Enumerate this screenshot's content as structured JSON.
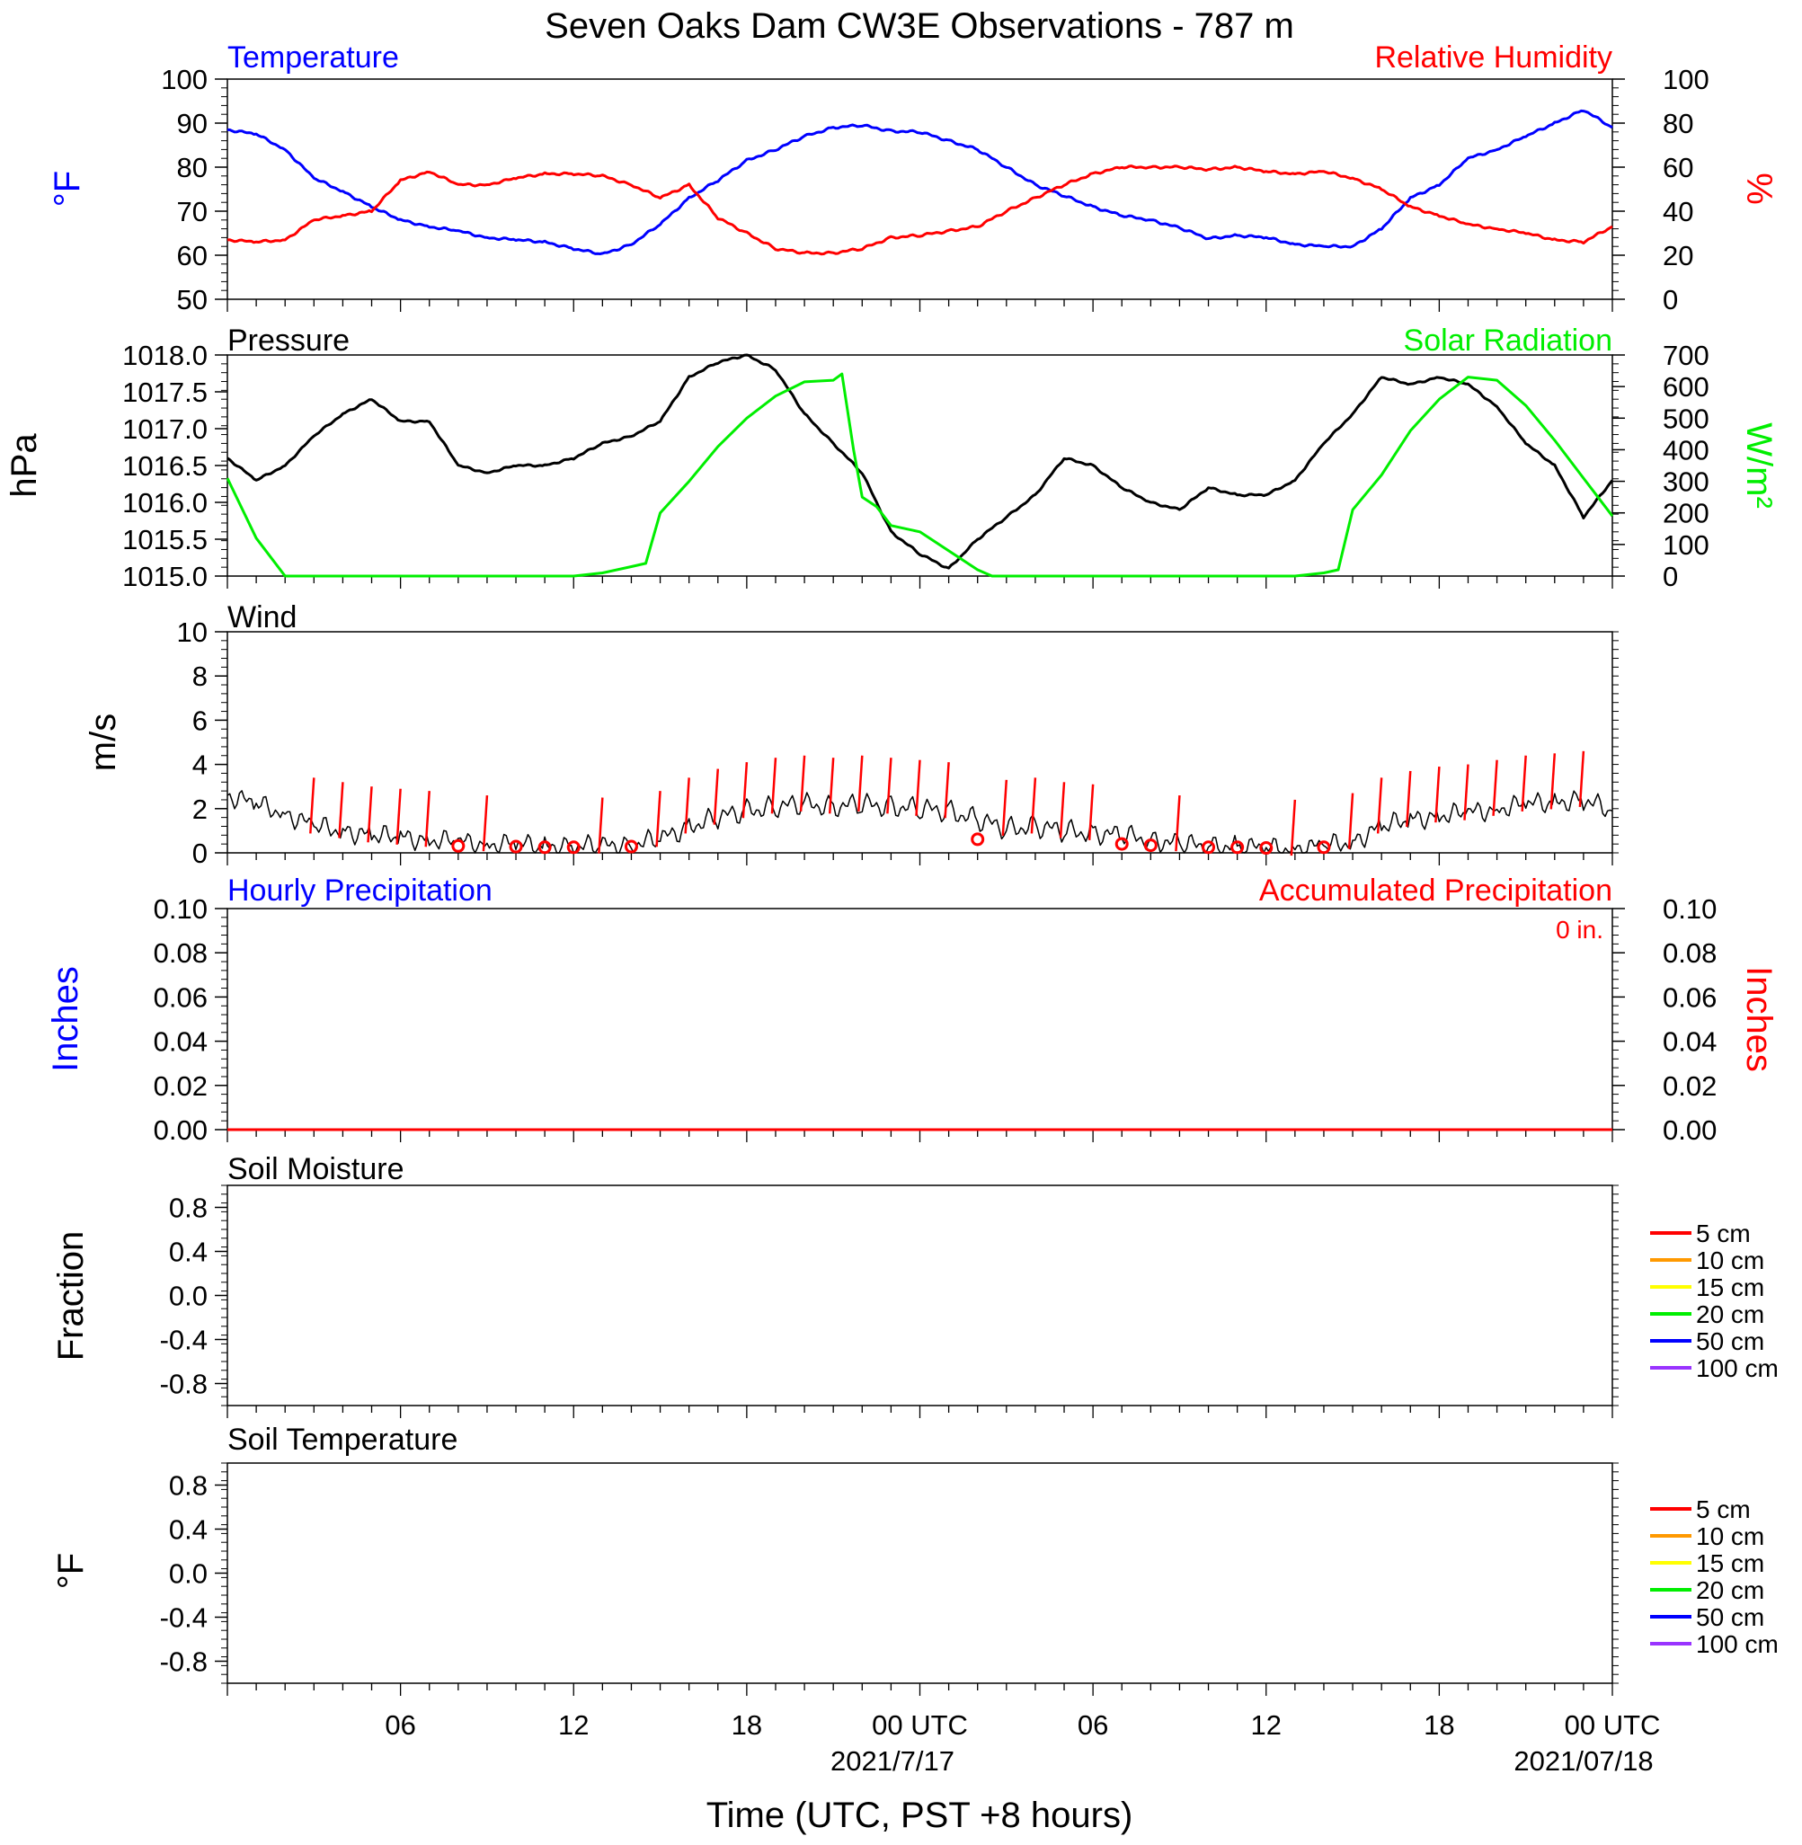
{
  "title": "Seven Oaks Dam CW3E Observations - 787 m",
  "time_axis": {
    "label": "Time (UTC, PST +8 hours)",
    "ticks": [
      "06",
      "12",
      "18",
      "00 UTC",
      "06",
      "12",
      "18",
      "00 UTC"
    ],
    "dates": [
      "2021/7/17",
      "2021/07/18"
    ],
    "range_hours": [
      0,
      48
    ]
  },
  "colors": {
    "blue": "#0000ff",
    "red": "#ff0000",
    "green": "#00ee00",
    "black": "#000000",
    "orange": "#ff9900",
    "yellow": "#ffff00",
    "violet": "#9933ff"
  },
  "panels": {
    "temperature": {
      "left_title": "Temperature",
      "right_title": "Relative Humidity",
      "left_unit": "°F",
      "right_unit": "%",
      "left_ticks": [
        "50",
        "60",
        "70",
        "80",
        "90",
        "100"
      ],
      "right_ticks": [
        "0",
        "20",
        "40",
        "60",
        "80",
        "100"
      ]
    },
    "pressure": {
      "left_title": "Pressure",
      "right_title": "Solar Radiation",
      "left_unit": "hPa",
      "right_unit": "W/m²",
      "left_ticks": [
        "1015.0",
        "1015.5",
        "1016.0",
        "1016.5",
        "1017.0",
        "1017.5",
        "1018.0"
      ],
      "right_ticks": [
        "0",
        "100",
        "200",
        "300",
        "400",
        "500",
        "600",
        "700"
      ]
    },
    "wind": {
      "left_title": "Wind",
      "left_unit": "m/s",
      "left_ticks": [
        "0",
        "2",
        "4",
        "6",
        "8",
        "10"
      ]
    },
    "precip": {
      "left_title": "Hourly Precipitation",
      "right_title": "Accumulated Precipitation",
      "left_unit": "Inches",
      "right_unit": "Inches",
      "total": "0 in.",
      "left_ticks": [
        "0.00",
        "0.02",
        "0.04",
        "0.06",
        "0.08",
        "0.10"
      ],
      "right_ticks": [
        "0.00",
        "0.02",
        "0.04",
        "0.06",
        "0.08",
        "0.10"
      ]
    },
    "soil_moisture": {
      "left_title": "Soil Moisture",
      "left_unit": "Fraction",
      "left_ticks": [
        "-0.8",
        "-0.4",
        "0.0",
        "0.4",
        "0.8"
      ],
      "legend": [
        "5 cm",
        "10 cm",
        "15 cm",
        "20 cm",
        "50 cm",
        "100 cm"
      ]
    },
    "soil_temperature": {
      "left_title": "Soil Temperature",
      "left_unit": "°F",
      "left_ticks": [
        "-0.8",
        "-0.4",
        "0.0",
        "0.4",
        "0.8"
      ],
      "legend": [
        "5 cm",
        "10 cm",
        "15 cm",
        "20 cm",
        "50 cm",
        "100 cm"
      ]
    }
  },
  "chart_data": [
    {
      "type": "line",
      "title": "Temperature",
      "xlabel": "Time (UTC, PST +8 hours)",
      "ylabel": "°F",
      "ylim": [
        50,
        100
      ],
      "x": [
        0,
        1,
        2,
        3,
        4,
        5,
        6,
        7,
        8,
        9,
        10,
        11,
        12,
        13,
        14,
        15,
        16,
        17,
        18,
        19,
        20,
        21,
        22,
        23,
        24,
        25,
        26,
        27,
        28,
        29,
        30,
        31,
        32,
        33,
        34,
        35,
        36,
        37,
        38,
        39,
        40,
        41,
        42,
        43,
        44,
        45,
        46,
        47,
        48
      ],
      "series": [
        {
          "name": "Temperature",
          "color": "#0000ff",
          "values": [
            88.5,
            87.5,
            84,
            77.5,
            74.5,
            71,
            68,
            66.5,
            65.5,
            64,
            63.5,
            63,
            61.5,
            60.2,
            62.5,
            67,
            73,
            77,
            81.5,
            84,
            87,
            89,
            89.5,
            88.2,
            88,
            86,
            84,
            80,
            76,
            73.5,
            71,
            69,
            68,
            66.2,
            63.8,
            64.5,
            64,
            62.5,
            62,
            62,
            66,
            73,
            76,
            82,
            84,
            87,
            90,
            93,
            89
          ]
        }
      ]
    },
    {
      "type": "line",
      "title": "Relative Humidity",
      "ylabel": "%",
      "ylim": [
        0,
        100
      ],
      "x": [
        0,
        1,
        2,
        3,
        4,
        5,
        6,
        7,
        8,
        9,
        10,
        11,
        12,
        13,
        14,
        15,
        16,
        17,
        18,
        19,
        20,
        21,
        22,
        23,
        24,
        25,
        26,
        27,
        28,
        29,
        30,
        31,
        32,
        33,
        34,
        35,
        36,
        37,
        38,
        39,
        40,
        41,
        42,
        43,
        44,
        45,
        46,
        47,
        48
      ],
      "series": [
        {
          "name": "Relative Humidity",
          "color": "#ff0000",
          "values": [
            27,
            26,
            27,
            36,
            38,
            40,
            54,
            58,
            52,
            52,
            55,
            57,
            57,
            56,
            52,
            46,
            52,
            37,
            30,
            23,
            21,
            21,
            23,
            28,
            29,
            31,
            33,
            40,
            46,
            52,
            57,
            60,
            60,
            60,
            59,
            60,
            58,
            57,
            58,
            55,
            50,
            42,
            38,
            34,
            32,
            30,
            27,
            26,
            33
          ]
        }
      ]
    },
    {
      "type": "line",
      "title": "Pressure",
      "ylabel": "hPa",
      "ylim": [
        1015.0,
        1018.0
      ],
      "x": [
        0,
        1,
        2,
        3,
        4,
        5,
        6,
        7,
        8,
        9,
        10,
        11,
        12,
        13,
        14,
        15,
        16,
        17,
        18,
        19,
        20,
        21,
        22,
        23,
        24,
        25,
        26,
        27,
        28,
        29,
        30,
        31,
        32,
        33,
        34,
        35,
        36,
        37,
        38,
        39,
        40,
        41,
        42,
        43,
        44,
        45,
        46,
        47,
        48
      ],
      "series": [
        {
          "name": "Pressure",
          "color": "#000000",
          "values": [
            1016.6,
            1016.3,
            1016.5,
            1016.9,
            1017.2,
            1017.4,
            1017.1,
            1017.1,
            1016.5,
            1016.4,
            1016.5,
            1016.5,
            1016.6,
            1016.8,
            1016.9,
            1017.1,
            1017.7,
            1017.9,
            1018.0,
            1017.8,
            1017.2,
            1016.8,
            1016.4,
            1015.6,
            1015.3,
            1015.1,
            1015.5,
            1015.8,
            1016.1,
            1016.6,
            1016.5,
            1016.2,
            1016.0,
            1015.9,
            1016.2,
            1016.1,
            1016.1,
            1016.3,
            1016.8,
            1017.2,
            1017.7,
            1017.6,
            1017.7,
            1017.6,
            1017.3,
            1016.8,
            1016.5,
            1015.8,
            1016.3
          ]
        }
      ]
    },
    {
      "type": "line",
      "title": "Solar Radiation",
      "ylabel": "W/m²",
      "ylim": [
        0,
        700
      ],
      "x": [
        0,
        1,
        2,
        3,
        4,
        5,
        6,
        7,
        8,
        9,
        10,
        11,
        12,
        13,
        14,
        14.5,
        15,
        16,
        17,
        18,
        19,
        20,
        21,
        21.3,
        21.7,
        22,
        22.5,
        23,
        24,
        25,
        26,
        26.5,
        27,
        28,
        29,
        30,
        31,
        32,
        33,
        34,
        35,
        36,
        37,
        38,
        38.5,
        39,
        40,
        41,
        42,
        43,
        44,
        45,
        46,
        47,
        48
      ],
      "series": [
        {
          "name": "Solar Radiation",
          "color": "#00ee00",
          "values": [
            310,
            120,
            0,
            0,
            0,
            0,
            0,
            0,
            0,
            0,
            0,
            0,
            0,
            10,
            30,
            40,
            200,
            300,
            410,
            500,
            570,
            615,
            620,
            640,
            400,
            250,
            220,
            160,
            140,
            80,
            20,
            0,
            0,
            0,
            0,
            0,
            0,
            0,
            0,
            0,
            0,
            0,
            0,
            10,
            20,
            210,
            320,
            460,
            560,
            630,
            620,
            540,
            430,
            310,
            190
          ]
        }
      ]
    },
    {
      "type": "line",
      "title": "Wind",
      "ylabel": "m/s",
      "ylim": [
        0,
        10
      ],
      "x": [
        0,
        1,
        2,
        3,
        4,
        5,
        6,
        7,
        8,
        9,
        10,
        11,
        12,
        13,
        14,
        15,
        16,
        17,
        18,
        19,
        20,
        21,
        22,
        23,
        24,
        25,
        26,
        27,
        28,
        29,
        30,
        31,
        32,
        33,
        34,
        35,
        36,
        37,
        38,
        39,
        40,
        41,
        42,
        43,
        44,
        45,
        46,
        47,
        48
      ],
      "series": [
        {
          "name": "Wind speed",
          "color": "#000000",
          "values": [
            2.6,
            2.2,
            1.8,
            1.2,
            1.0,
            0.8,
            0.7,
            0.6,
            0.5,
            0.4,
            0.4,
            0.3,
            0.3,
            0.3,
            0.4,
            0.6,
            1.2,
            1.6,
            1.9,
            2.1,
            2.2,
            2.1,
            2.2,
            2.1,
            2.0,
            1.9,
            1.5,
            1.1,
            1.2,
            1.0,
            0.9,
            0.8,
            0.6,
            0.4,
            0.3,
            0.3,
            0.2,
            0.2,
            0.3,
            0.5,
            1.2,
            1.5,
            1.7,
            1.8,
            2.0,
            2.2,
            2.3,
            2.4,
            1.9
          ]
        }
      ],
      "barb_hours": [
        3,
        4,
        5,
        6,
        7,
        8,
        9,
        10,
        11,
        12,
        13,
        14,
        15,
        16,
        17,
        18,
        19,
        20,
        21,
        22,
        23,
        24,
        25,
        26,
        27,
        28,
        29,
        30,
        31,
        32,
        33,
        34,
        35,
        36,
        37,
        38,
        39,
        40,
        41,
        42,
        43,
        44,
        45,
        46,
        47
      ],
      "calm_hours": [
        8,
        10,
        11,
        12,
        14,
        26,
        31,
        32,
        34,
        35,
        36,
        38
      ]
    },
    {
      "type": "line",
      "title": "Hourly Precipitation",
      "ylabel": "Inches",
      "ylim": [
        0,
        0.1
      ],
      "x": [
        0,
        48
      ],
      "series": [
        {
          "name": "Hourly Precipitation",
          "color": "#0000ff",
          "values": [
            0,
            0
          ]
        },
        {
          "name": "Accumulated Precipitation",
          "color": "#ff0000",
          "values": [
            0,
            0
          ]
        }
      ]
    },
    {
      "type": "line",
      "title": "Soil Moisture",
      "ylabel": "Fraction",
      "ylim": [
        -1,
        1
      ],
      "series": []
    },
    {
      "type": "line",
      "title": "Soil Temperature",
      "ylabel": "°F",
      "ylim": [
        -1,
        1
      ],
      "series": []
    }
  ]
}
